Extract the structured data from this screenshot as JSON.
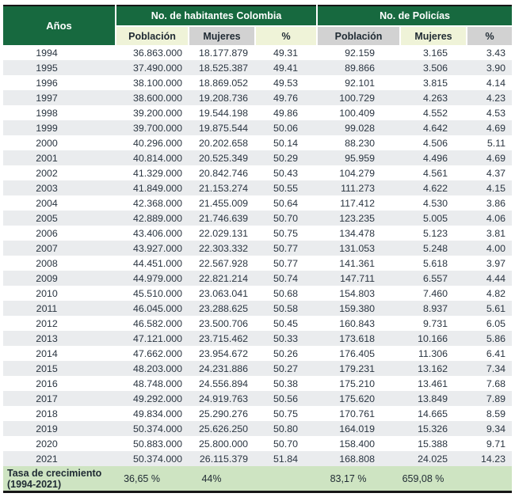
{
  "chart_data": {
    "type": "table",
    "corner_label": "Años",
    "column_groups": [
      {
        "label": "Años",
        "span": 1
      },
      {
        "label": "No. de habitantes Colombia",
        "span": 3
      },
      {
        "label": "No. de Policías",
        "span": 3
      }
    ],
    "sub_columns": [
      "Población",
      "Mujeres",
      "%",
      "Población",
      "Mujeres",
      "%"
    ],
    "rows": [
      [
        "1994",
        "36.863.000",
        "18.177.879",
        "49.31",
        "92.159",
        "3.165",
        "3.43"
      ],
      [
        "1995",
        "37.490.000",
        "18.525.387",
        "49.41",
        "89.866",
        "3.506",
        "3.90"
      ],
      [
        "1996",
        "38.100.000",
        "18.869.052",
        "49.53",
        "92.101",
        "3.815",
        "4.14"
      ],
      [
        "1997",
        "38.600.000",
        "19.208.736",
        "49.76",
        "100.729",
        "4.263",
        "4.23"
      ],
      [
        "1998",
        "39.200.000",
        "19.544.198",
        "49.86",
        "100.409",
        "4.552",
        "4.53"
      ],
      [
        "1999",
        "39.700.000",
        "19.875.544",
        "50.06",
        "99.028",
        "4.642",
        "4.69"
      ],
      [
        "2000",
        "40.296.000",
        "20.202.658",
        "50.14",
        "88.230",
        "4.506",
        "5.11"
      ],
      [
        "2001",
        "40.814.000",
        "20.525.349",
        "50.29",
        "95.959",
        "4.496",
        "4.69"
      ],
      [
        "2002",
        "41.329.000",
        "20.842.746",
        "50.43",
        "104.279",
        "4.561",
        "4.37"
      ],
      [
        "2003",
        "41.849.000",
        "21.153.274",
        "50.55",
        "111.273",
        "4.622",
        "4.15"
      ],
      [
        "2004",
        "42.368.000",
        "21.455.009",
        "50.64",
        "117.412",
        "4.530",
        "3.86"
      ],
      [
        "2005",
        "42.889.000",
        "21.746.639",
        "50.70",
        "123.235",
        "5.005",
        "4.06"
      ],
      [
        "2006",
        "43.406.000",
        "22.029.131",
        "50.75",
        "134.478",
        "5.123",
        "3.81"
      ],
      [
        "2007",
        "43.927.000",
        "22.303.332",
        "50.77",
        "131.053",
        "5.248",
        "4.00"
      ],
      [
        "2008",
        "44.451.000",
        "22.567.928",
        "50.77",
        "141.361",
        "5.618",
        "3.97"
      ],
      [
        "2009",
        "44.979.000",
        "22.821.214",
        "50.74",
        "147.711",
        "6.557",
        "4.44"
      ],
      [
        "2010",
        "45.510.000",
        "23.063.041",
        "50.68",
        "154.803",
        "7.460",
        "4.82"
      ],
      [
        "2011",
        "46.045.000",
        "23.288.625",
        "50.58",
        "159.380",
        "8.937",
        "5.61"
      ],
      [
        "2012",
        "46.582.000",
        "23.500.706",
        "50.45",
        "160.843",
        "9.731",
        "6.05"
      ],
      [
        "2013",
        "47.121.000",
        "23.715.462",
        "50.33",
        "173.618",
        "10.166",
        "5.86"
      ],
      [
        "2014",
        "47.662.000",
        "23.954.672",
        "50.26",
        "176.405",
        "11.306",
        "6.41"
      ],
      [
        "2015",
        "48.203.000",
        "24.231.886",
        "50.27",
        "179.231",
        "13.162",
        "7.34"
      ],
      [
        "2016",
        "48.748.000",
        "24.556.894",
        "50.38",
        "175.210",
        "13.461",
        "7.68"
      ],
      [
        "2017",
        "49.292.000",
        "24.919.763",
        "50.56",
        "175.620",
        "13.849",
        "7.89"
      ],
      [
        "2018",
        "49.834.000",
        "25.290.276",
        "50.75",
        "170.761",
        "14.665",
        "8.59"
      ],
      [
        "2019",
        "50.374.000",
        "25.626.250",
        "50.80",
        "164.019",
        "15.326",
        "9.34"
      ],
      [
        "2020",
        "50.883.000",
        "25.800.000",
        "50.70",
        "158.400",
        "15.388",
        "9.71"
      ],
      [
        "2021",
        "50.374.000",
        "26.115.379",
        "51.84",
        "168.808",
        "24.025",
        "14.23"
      ]
    ],
    "footer": {
      "label_line1": "Tasa de crecimiento",
      "label_line2": "(1994-2021)",
      "values": [
        "36,65 %",
        "44%",
        "",
        "83,17 %",
        "659,08 %",
        ""
      ]
    }
  },
  "colors": {
    "header_green": "#17693f",
    "subheader_pale": "#eff3d8",
    "subheader_gray": "#d2d2d2",
    "row_stripe": "#eaecee",
    "footer_green": "#cee4c2",
    "text_dark": "#2a3541",
    "border_dark": "#161616"
  }
}
